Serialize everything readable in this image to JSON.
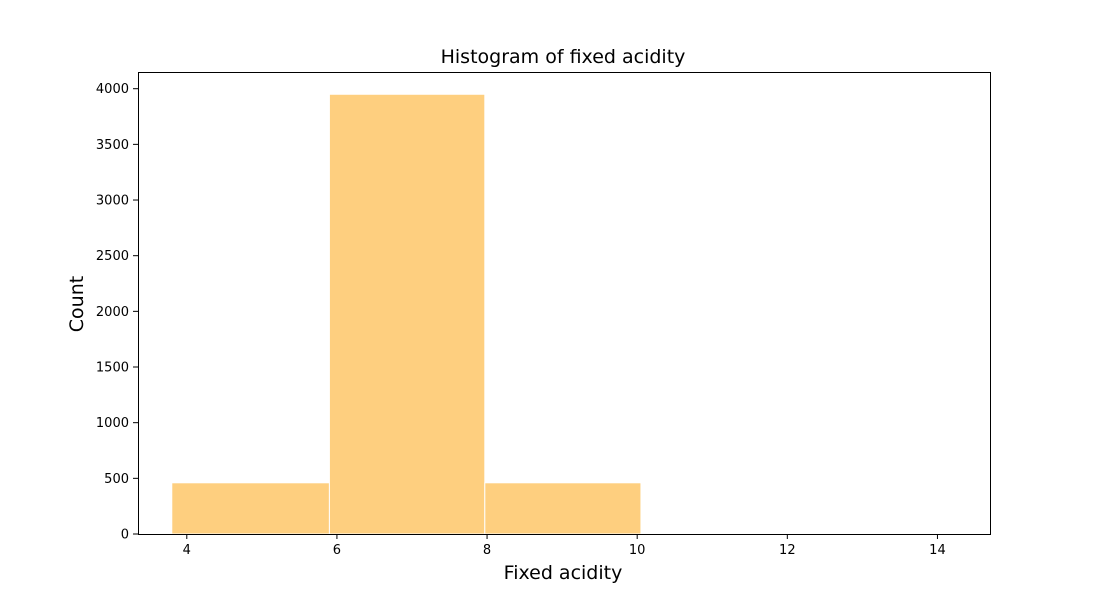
{
  "chart_data": {
    "type": "bar",
    "title": "Histogram of fixed acidity",
    "xlabel": "Fixed acidity",
    "ylabel": "Count",
    "bins": [
      {
        "x0": 3.8,
        "x1": 5.9,
        "count": 460
      },
      {
        "x0": 5.9,
        "x1": 7.97,
        "count": 3950
      },
      {
        "x0": 7.97,
        "x1": 10.05,
        "count": 460
      }
    ],
    "xlim": [
      3.35,
      14.7
    ],
    "ylim": [
      0,
      4150
    ],
    "xticks": [
      4,
      6,
      8,
      10,
      12,
      14
    ],
    "yticks": [
      0,
      500,
      1000,
      1500,
      2000,
      2500,
      3000,
      3500,
      4000
    ],
    "bar_color": "#fecf7f",
    "bar_edge_color": "#ffffff",
    "grid": false,
    "legend": false
  }
}
